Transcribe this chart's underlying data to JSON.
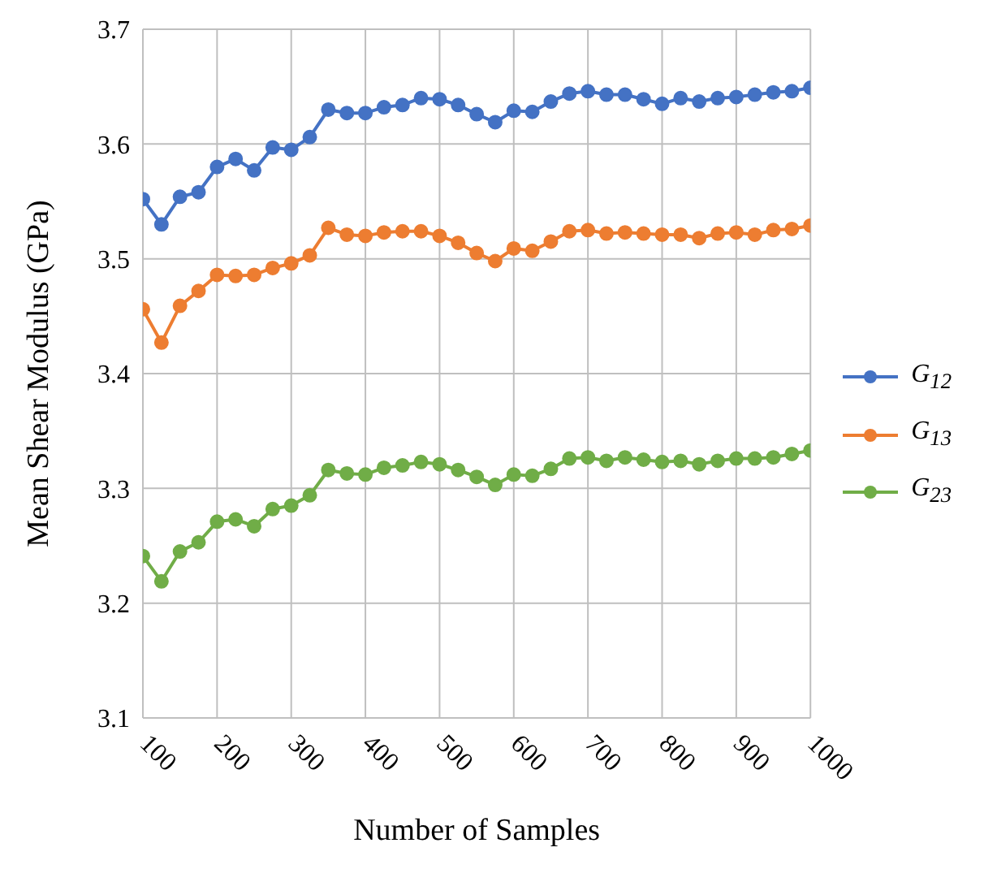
{
  "chart_data": {
    "type": "line",
    "xlabel": "Number of Samples",
    "ylabel": "Mean Shear Modulus (GPa)",
    "x": [
      100,
      125,
      150,
      175,
      200,
      225,
      250,
      275,
      300,
      325,
      350,
      375,
      400,
      425,
      450,
      475,
      500,
      525,
      550,
      575,
      600,
      625,
      650,
      675,
      700,
      725,
      750,
      775,
      800,
      825,
      850,
      875,
      900,
      925,
      950,
      975,
      1000
    ],
    "series": [
      {
        "name": "G$_{12}$",
        "color": "#4472c4",
        "values": [
          3.552,
          3.53,
          3.554,
          3.558,
          3.58,
          3.587,
          3.577,
          3.597,
          3.595,
          3.606,
          3.63,
          3.627,
          3.627,
          3.632,
          3.634,
          3.64,
          3.639,
          3.634,
          3.626,
          3.619,
          3.629,
          3.628,
          3.637,
          3.644,
          3.646,
          3.643,
          3.643,
          3.639,
          3.635,
          3.64,
          3.637,
          3.64,
          3.641,
          3.643,
          3.645,
          3.646,
          3.649
        ]
      },
      {
        "name": "G$_{13}$",
        "color": "#ed7d31",
        "values": [
          3.456,
          3.427,
          3.459,
          3.472,
          3.486,
          3.485,
          3.486,
          3.492,
          3.496,
          3.503,
          3.527,
          3.521,
          3.52,
          3.523,
          3.524,
          3.524,
          3.52,
          3.514,
          3.505,
          3.498,
          3.509,
          3.507,
          3.515,
          3.524,
          3.525,
          3.522,
          3.523,
          3.522,
          3.521,
          3.521,
          3.518,
          3.522,
          3.523,
          3.521,
          3.525,
          3.526,
          3.529
        ]
      },
      {
        "name": "G$_{23}$",
        "color": "#70ad47",
        "values": [
          3.241,
          3.219,
          3.245,
          3.253,
          3.271,
          3.273,
          3.267,
          3.282,
          3.285,
          3.294,
          3.316,
          3.313,
          3.312,
          3.318,
          3.32,
          3.323,
          3.321,
          3.316,
          3.31,
          3.303,
          3.312,
          3.311,
          3.317,
          3.326,
          3.327,
          3.324,
          3.327,
          3.325,
          3.323,
          3.324,
          3.321,
          3.324,
          3.326,
          3.326,
          3.327,
          3.33,
          3.333
        ]
      }
    ],
    "xlim": [
      100,
      1000
    ],
    "xticks": [
      100,
      200,
      300,
      400,
      500,
      600,
      700,
      800,
      900,
      1000
    ],
    "ylim": [
      3.1,
      3.7
    ],
    "yticks": [
      3.1,
      3.2,
      3.3,
      3.4,
      3.5,
      3.6,
      3.7
    ],
    "grid": true,
    "legend": "right",
    "marker": "circle",
    "line_style": "solid"
  }
}
